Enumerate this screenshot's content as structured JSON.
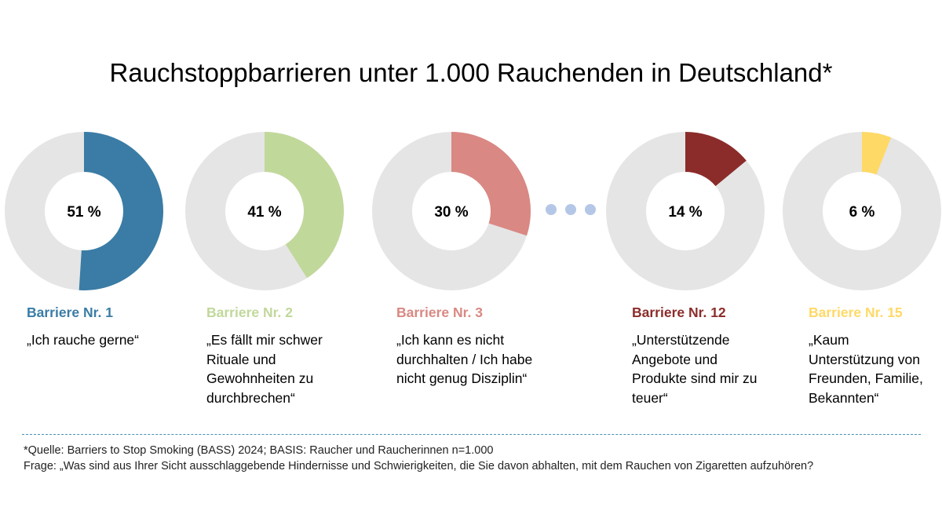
{
  "chart_data": {
    "type": "donut",
    "title": "Rauchstoppbarrieren unter 1.000 Rauchenden in Deutschland*",
    "track_color": "#e5e5e5",
    "items": [
      {
        "label": "Barriere Nr. 1",
        "quote": "„Ich rauche gerne“",
        "value": 51,
        "value_label": "51 %",
        "color": "#3a7ca5"
      },
      {
        "label": "Barriere Nr. 2",
        "quote": "„Es fällt mir schwer Rituale und Gewohnheiten zu durchbrechen“",
        "value": 41,
        "value_label": "41 %",
        "color": "#c1d89b"
      },
      {
        "label": "Barriere Nr. 3",
        "quote": "„Ich kann es nicht durchhalten / Ich habe nicht genug Disziplin“",
        "value": 30,
        "value_label": "30 %",
        "color": "#d98883"
      },
      {
        "label": "Barriere Nr. 12",
        "quote": "„Unterstützende Angebote und Produkte sind mir zu teuer“",
        "value": 14,
        "value_label": "14 %",
        "color": "#8b2c2a"
      },
      {
        "label": "Barriere Nr. 15",
        "quote": "„Kaum Unterstützung von Freunden, Familie, Bekannten“",
        "value": 6,
        "value_label": "6 %",
        "color": "#ffd966"
      }
    ]
  },
  "footnote": {
    "source": "*Quelle: Barriers to Stop Smoking (BASS) 2024; BASIS: Raucher und Raucherinnen n=1.000",
    "question": "Frage: „Was sind aus Ihrer Sicht ausschlaggebende Hindernisse und Schwierigkeiten, die Sie davon abhalten, mit dem Rauchen von Zigaretten aufzuhören?"
  }
}
